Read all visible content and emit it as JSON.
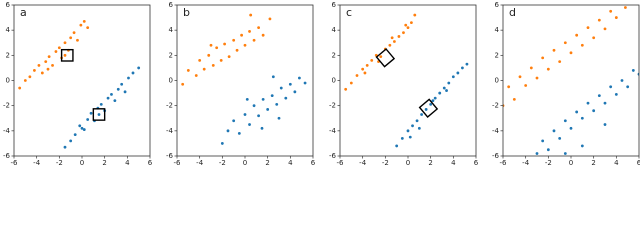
{
  "chart_data": [
    {
      "type": "scatter",
      "title": "a",
      "xlim": [
        -6,
        6
      ],
      "ylim": [
        -6,
        6
      ],
      "xticks": [
        -6,
        -4,
        -2,
        0,
        2,
        4,
        6
      ],
      "yticks": [
        -6,
        -4,
        -2,
        0,
        2,
        4,
        6
      ],
      "series": [
        {
          "color": "#ff7f0e",
          "x": [
            -5.5,
            -5,
            -4.6,
            -4.2,
            -3.8,
            -3.5,
            -3.2,
            -2.9,
            -2.6,
            -2.3,
            -2,
            -1.8,
            -1.5,
            -1.2,
            -1,
            -0.7,
            -0.4,
            -0.1,
            0.2,
            0.5,
            -3,
            -1.5
          ],
          "y": [
            -0.6,
            0,
            0.3,
            0.8,
            1.2,
            0.6,
            1.5,
            1.9,
            1.2,
            2.3,
            2.6,
            1.8,
            3,
            2.4,
            3.4,
            3.8,
            3.2,
            4.4,
            4.7,
            4.2,
            0.9,
            2.0
          ]
        },
        {
          "color": "#1f77b4",
          "x": [
            -1.5,
            -1,
            -0.6,
            -0.2,
            0.2,
            0.5,
            0.8,
            1.1,
            1.4,
            1.7,
            2,
            2.3,
            2.6,
            2.9,
            3.2,
            3.5,
            3.8,
            4.1,
            4.5,
            5,
            1.5,
            0
          ],
          "y": [
            -5.3,
            -4.8,
            -4.3,
            -3.6,
            -3.9,
            -3.1,
            -2.6,
            -3.2,
            -2.2,
            -1.9,
            -2.4,
            -1.4,
            -1.1,
            -1.6,
            -0.7,
            -0.3,
            -0.9,
            0.2,
            0.6,
            1,
            -2.7,
            -3.8
          ]
        }
      ],
      "boxes": [
        {
          "x": -1.3,
          "y": 2.0,
          "size": 1.0,
          "angle": 0
        },
        {
          "x": 1.5,
          "y": -2.7,
          "size": 1.0,
          "angle": 0
        }
      ]
    },
    {
      "type": "scatter",
      "title": "b",
      "xlim": [
        -6,
        6
      ],
      "ylim": [
        -6,
        6
      ],
      "xticks": [
        -6,
        -4,
        -2,
        0,
        2,
        4,
        6
      ],
      "yticks": [
        -6,
        -4,
        -2,
        0,
        2,
        4,
        6
      ],
      "series": [
        {
          "color": "#ff7f0e",
          "x": [
            -5.5,
            -5,
            -4.3,
            -4,
            -3.6,
            -3.2,
            -2.8,
            -2.5,
            -2.1,
            -1.8,
            -1.4,
            -1,
            -0.7,
            -0.3,
            0,
            0.4,
            0.8,
            1.2,
            1.6,
            2.2,
            0.5,
            -3
          ],
          "y": [
            -0.3,
            0.8,
            0.4,
            1.6,
            0.9,
            2,
            1.2,
            2.6,
            1.6,
            2.9,
            1.9,
            3.2,
            2.4,
            3.6,
            2.8,
            3.9,
            3.2,
            4.2,
            3.6,
            4.9,
            5.2,
            2.8
          ]
        },
        {
          "color": "#1f77b4",
          "x": [
            -2,
            -1.5,
            -1,
            -0.5,
            0,
            0.4,
            0.8,
            1.2,
            1.6,
            2,
            2.4,
            2.8,
            3.2,
            3.6,
            4,
            4.4,
            4.8,
            5.3,
            1.5,
            3,
            0.2,
            2.5
          ],
          "y": [
            -5,
            -4,
            -3.2,
            -4.2,
            -2.7,
            -3.5,
            -2,
            -2.8,
            -1.5,
            -2.3,
            -1.2,
            -1.9,
            -0.6,
            -1.4,
            -0.3,
            -0.9,
            0.2,
            -0.2,
            -3.8,
            -3,
            -1.5,
            0.3
          ]
        }
      ]
    },
    {
      "type": "scatter",
      "title": "c",
      "xlim": [
        -6,
        6
      ],
      "ylim": [
        -6,
        6
      ],
      "xticks": [
        -6,
        -4,
        -2,
        0,
        2,
        4,
        6
      ],
      "yticks": [
        -6,
        -4,
        -2,
        0,
        2,
        4,
        6
      ],
      "series": [
        {
          "color": "#ff7f0e",
          "x": [
            -5.5,
            -5,
            -4.5,
            -4,
            -3.6,
            -3.2,
            -2.8,
            -2.4,
            -2,
            -1.6,
            -1.2,
            -0.8,
            -0.4,
            0,
            0.3,
            0.6,
            -3.8,
            -1.4,
            -2.6,
            -0.2
          ],
          "y": [
            -0.7,
            -0.2,
            0.4,
            0.9,
            1.2,
            1.6,
            2,
            1.9,
            2.5,
            2.8,
            3.1,
            3.5,
            3.8,
            4.2,
            4.6,
            5.2,
            0.6,
            3.4,
            1.5,
            4.4
          ]
        },
        {
          "color": "#1f77b4",
          "x": [
            -1,
            -0.5,
            0,
            0.4,
            0.8,
            1.2,
            1.6,
            2,
            2.4,
            2.8,
            3.2,
            3.6,
            4,
            4.4,
            4.8,
            5.2,
            1,
            2.2,
            3.4,
            0.2
          ],
          "y": [
            -5.2,
            -4.6,
            -4,
            -3.6,
            -3.2,
            -2.7,
            -2.3,
            -1.9,
            -1.4,
            -1,
            -0.6,
            -0.2,
            0.3,
            0.6,
            1,
            1.3,
            -3.8,
            -1.6,
            -0.8,
            -4.5
          ]
        }
      ],
      "boxes": [
        {
          "x": -2.0,
          "y": 1.8,
          "size": 1.1,
          "angle": 40
        },
        {
          "x": 1.8,
          "y": -2.2,
          "size": 1.1,
          "angle": 40
        }
      ]
    },
    {
      "type": "scatter",
      "title": "d",
      "xlim": [
        -6,
        6
      ],
      "ylim": [
        -6,
        6
      ],
      "xticks": [
        -6,
        -4,
        -2,
        0,
        2,
        4,
        6
      ],
      "yticks": [
        -6,
        -4,
        -2,
        0,
        2,
        4,
        6
      ],
      "series": [
        {
          "color": "#ff7f0e",
          "x": [
            -6,
            -5.5,
            -5,
            -4.5,
            -4,
            -3.5,
            -3,
            -2.5,
            -2,
            -1.5,
            -1,
            -0.5,
            0,
            0.5,
            1,
            1.5,
            2,
            2.5,
            3,
            3.5,
            4,
            4.8
          ],
          "y": [
            -2,
            -0.5,
            -1.5,
            0.3,
            -0.4,
            1,
            0.2,
            1.8,
            0.9,
            2.4,
            1.5,
            3,
            2.2,
            3.6,
            2.8,
            4.2,
            3.4,
            4.8,
            4.1,
            5.5,
            5,
            5.8
          ]
        },
        {
          "color": "#1f77b4",
          "x": [
            -3,
            -2.5,
            -2,
            -1.5,
            -1,
            -0.5,
            0,
            0.5,
            1,
            1.5,
            2,
            2.5,
            3,
            3.5,
            4,
            4.5,
            5,
            5.5,
            6,
            1,
            3,
            -0.5
          ],
          "y": [
            -5.8,
            -4.8,
            -5.5,
            -4,
            -4.6,
            -3.2,
            -3.8,
            -2.5,
            -3,
            -1.8,
            -2.4,
            -1.2,
            -1.8,
            -0.5,
            -1.1,
            0,
            -0.5,
            0.8,
            0.5,
            -5.2,
            -3.5,
            -5.8
          ]
        }
      ]
    }
  ]
}
